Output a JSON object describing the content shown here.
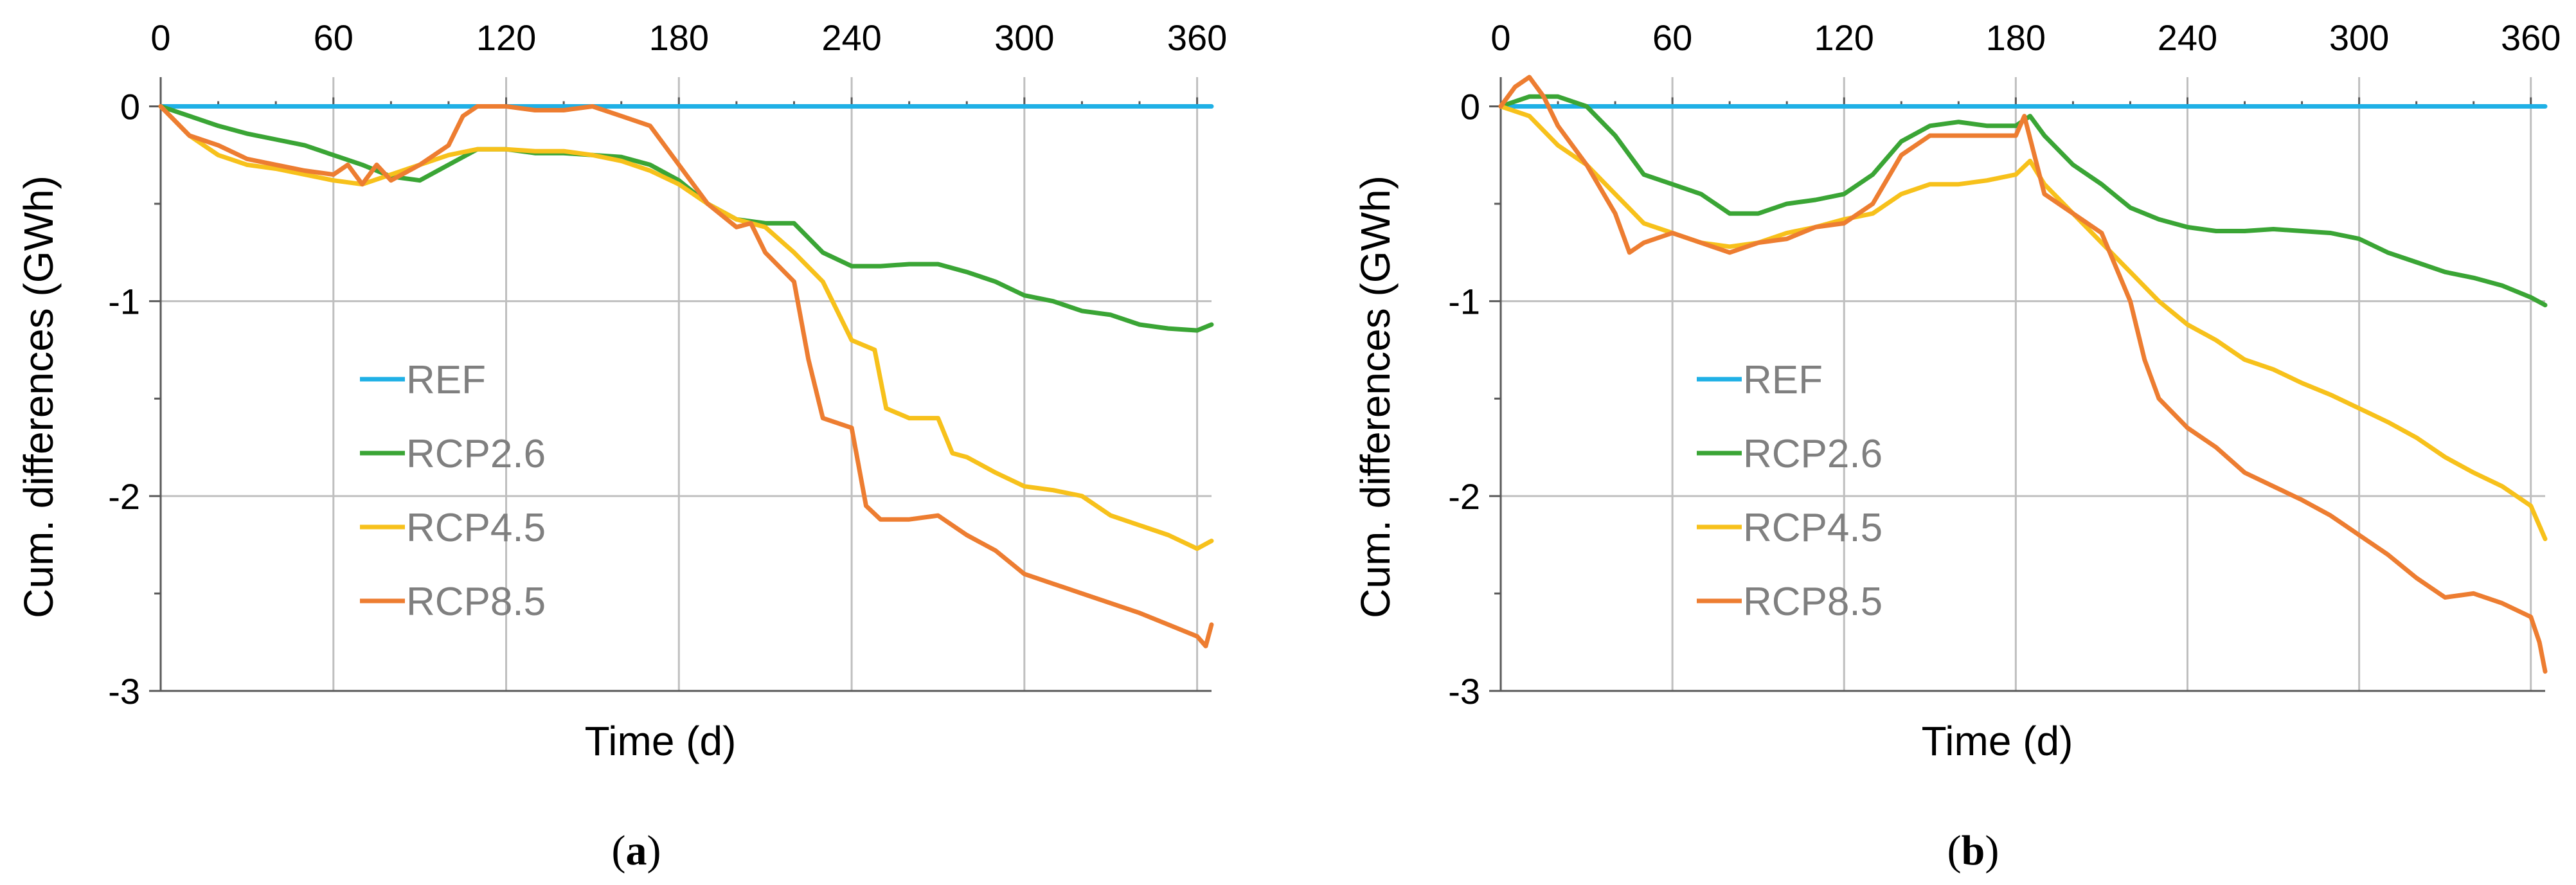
{
  "chart_data": [
    {
      "type": "line",
      "panel_label": "a",
      "xlabel": "Time (d)",
      "ylabel": "Cum. differences (GWh)",
      "xlim": [
        0,
        365
      ],
      "ylim": [
        -3,
        0.15
      ],
      "x_ticks": [
        0,
        60,
        120,
        180,
        240,
        300,
        360
      ],
      "y_ticks": [
        0,
        -1,
        -2,
        -3
      ],
      "x_tick_labels": [
        "0",
        "60",
        "120",
        "180",
        "240",
        "300",
        "360"
      ],
      "y_tick_labels": [
        "0",
        "-1",
        "-2",
        "-3"
      ],
      "x_axis_position": "top",
      "grid": true,
      "legend": "center-left",
      "series": [
        {
          "name": "REF",
          "color": "#1fb0e6",
          "x": [
            0,
            365
          ],
          "y": [
            0,
            0
          ]
        },
        {
          "name": "RCP2.6",
          "color": "#3aa535",
          "x": [
            0,
            10,
            20,
            30,
            40,
            50,
            60,
            70,
            80,
            90,
            100,
            110,
            120,
            130,
            140,
            150,
            160,
            170,
            180,
            190,
            200,
            210,
            220,
            230,
            240,
            250,
            260,
            270,
            280,
            290,
            300,
            310,
            320,
            330,
            340,
            350,
            360,
            365
          ],
          "y": [
            0,
            -0.05,
            -0.1,
            -0.14,
            -0.17,
            -0.2,
            -0.25,
            -0.3,
            -0.36,
            -0.38,
            -0.3,
            -0.22,
            -0.22,
            -0.24,
            -0.24,
            -0.25,
            -0.26,
            -0.3,
            -0.38,
            -0.5,
            -0.58,
            -0.6,
            -0.6,
            -0.75,
            -0.82,
            -0.82,
            -0.81,
            -0.81,
            -0.85,
            -0.9,
            -0.97,
            -1.0,
            -1.05,
            -1.07,
            -1.12,
            -1.14,
            -1.15,
            -1.12
          ]
        },
        {
          "name": "RCP4.5",
          "color": "#f7c11b",
          "x": [
            0,
            10,
            20,
            30,
            40,
            50,
            60,
            70,
            80,
            90,
            100,
            110,
            120,
            130,
            140,
            150,
            160,
            170,
            180,
            190,
            200,
            210,
            220,
            230,
            240,
            248,
            252,
            260,
            270,
            275,
            280,
            290,
            300,
            310,
            320,
            330,
            340,
            350,
            360,
            365
          ],
          "y": [
            0,
            -0.15,
            -0.25,
            -0.3,
            -0.32,
            -0.35,
            -0.38,
            -0.4,
            -0.35,
            -0.3,
            -0.25,
            -0.22,
            -0.22,
            -0.23,
            -0.23,
            -0.25,
            -0.28,
            -0.33,
            -0.4,
            -0.5,
            -0.58,
            -0.62,
            -0.75,
            -0.9,
            -1.2,
            -1.25,
            -1.55,
            -1.6,
            -1.6,
            -1.78,
            -1.8,
            -1.88,
            -1.95,
            -1.97,
            -2.0,
            -2.1,
            -2.15,
            -2.2,
            -2.27,
            -2.23
          ]
        },
        {
          "name": "RCP8.5",
          "color": "#ed7d31",
          "x": [
            0,
            10,
            20,
            30,
            40,
            50,
            60,
            65,
            70,
            75,
            80,
            90,
            100,
            105,
            110,
            120,
            130,
            140,
            150,
            160,
            170,
            180,
            190,
            200,
            205,
            210,
            220,
            225,
            230,
            240,
            245,
            250,
            260,
            270,
            280,
            290,
            300,
            310,
            320,
            330,
            340,
            350,
            360,
            363,
            365
          ],
          "y": [
            0,
            -0.15,
            -0.2,
            -0.27,
            -0.3,
            -0.33,
            -0.35,
            -0.3,
            -0.4,
            -0.3,
            -0.38,
            -0.3,
            -0.2,
            -0.05,
            0,
            0,
            -0.02,
            -0.02,
            0,
            -0.05,
            -0.1,
            -0.3,
            -0.5,
            -0.62,
            -0.6,
            -0.75,
            -0.9,
            -1.3,
            -1.6,
            -1.65,
            -2.05,
            -2.12,
            -2.12,
            -2.1,
            -2.2,
            -2.28,
            -2.4,
            -2.45,
            -2.5,
            -2.55,
            -2.6,
            -2.66,
            -2.72,
            -2.77,
            -2.66
          ]
        }
      ]
    },
    {
      "type": "line",
      "panel_label": "b",
      "xlabel": "Time (d)",
      "ylabel": "Cum. differences (GWh)",
      "xlim": [
        0,
        365
      ],
      "ylim": [
        -3,
        0.15
      ],
      "x_ticks": [
        0,
        60,
        120,
        180,
        240,
        300,
        360
      ],
      "y_ticks": [
        0,
        -1,
        -2,
        -3
      ],
      "x_tick_labels": [
        "0",
        "60",
        "120",
        "180",
        "240",
        "300",
        "360"
      ],
      "y_tick_labels": [
        "0",
        "-1",
        "-2",
        "-3"
      ],
      "x_axis_position": "top",
      "grid": true,
      "legend": "center-left",
      "series": [
        {
          "name": "REF",
          "color": "#1fb0e6",
          "x": [
            0,
            365
          ],
          "y": [
            0,
            0
          ]
        },
        {
          "name": "RCP2.6",
          "color": "#3aa535",
          "x": [
            0,
            10,
            20,
            30,
            40,
            50,
            60,
            70,
            80,
            90,
            100,
            110,
            120,
            130,
            140,
            150,
            160,
            170,
            180,
            185,
            190,
            200,
            210,
            220,
            230,
            240,
            250,
            260,
            270,
            280,
            290,
            300,
            310,
            320,
            330,
            340,
            350,
            360,
            365
          ],
          "y": [
            0,
            0.05,
            0.05,
            0,
            -0.15,
            -0.35,
            -0.4,
            -0.45,
            -0.55,
            -0.55,
            -0.5,
            -0.48,
            -0.45,
            -0.35,
            -0.18,
            -0.1,
            -0.08,
            -0.1,
            -0.1,
            -0.05,
            -0.15,
            -0.3,
            -0.4,
            -0.52,
            -0.58,
            -0.62,
            -0.64,
            -0.64,
            -0.63,
            -0.64,
            -0.65,
            -0.68,
            -0.75,
            -0.8,
            -0.85,
            -0.88,
            -0.92,
            -0.98,
            -1.02
          ]
        },
        {
          "name": "RCP4.5",
          "color": "#f7c11b",
          "x": [
            0,
            10,
            20,
            30,
            40,
            50,
            60,
            70,
            80,
            90,
            100,
            110,
            120,
            130,
            140,
            150,
            160,
            170,
            180,
            185,
            190,
            200,
            210,
            220,
            230,
            240,
            250,
            260,
            270,
            280,
            290,
            300,
            310,
            320,
            330,
            340,
            350,
            360,
            365
          ],
          "y": [
            0,
            -0.05,
            -0.2,
            -0.3,
            -0.45,
            -0.6,
            -0.65,
            -0.7,
            -0.72,
            -0.7,
            -0.65,
            -0.62,
            -0.58,
            -0.55,
            -0.45,
            -0.4,
            -0.4,
            -0.38,
            -0.35,
            -0.28,
            -0.4,
            -0.55,
            -0.7,
            -0.85,
            -1.0,
            -1.12,
            -1.2,
            -1.3,
            -1.35,
            -1.42,
            -1.48,
            -1.55,
            -1.62,
            -1.7,
            -1.8,
            -1.88,
            -1.95,
            -2.05,
            -2.22
          ]
        },
        {
          "name": "RCP8.5",
          "color": "#ed7d31",
          "x": [
            0,
            5,
            10,
            15,
            20,
            30,
            40,
            45,
            50,
            60,
            70,
            80,
            90,
            100,
            110,
            120,
            130,
            140,
            150,
            160,
            170,
            180,
            183,
            190,
            200,
            210,
            220,
            225,
            230,
            240,
            250,
            260,
            270,
            280,
            290,
            300,
            310,
            320,
            330,
            340,
            350,
            360,
            363,
            365
          ],
          "y": [
            0,
            0.1,
            0.15,
            0.05,
            -0.1,
            -0.3,
            -0.55,
            -0.75,
            -0.7,
            -0.65,
            -0.7,
            -0.75,
            -0.7,
            -0.68,
            -0.62,
            -0.6,
            -0.5,
            -0.25,
            -0.15,
            -0.15,
            -0.15,
            -0.15,
            -0.05,
            -0.45,
            -0.55,
            -0.65,
            -1.0,
            -1.3,
            -1.5,
            -1.65,
            -1.75,
            -1.88,
            -1.95,
            -2.02,
            -2.1,
            -2.2,
            -2.3,
            -2.42,
            -2.52,
            -2.5,
            -2.55,
            -2.62,
            -2.75,
            -2.9
          ]
        }
      ]
    }
  ]
}
